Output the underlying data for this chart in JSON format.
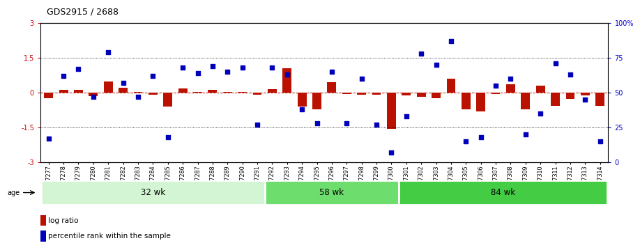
{
  "title": "GDS2915 / 2688",
  "samples": [
    "GSM97277",
    "GSM97278",
    "GSM97279",
    "GSM97280",
    "GSM97281",
    "GSM97282",
    "GSM97283",
    "GSM97284",
    "GSM97285",
    "GSM97286",
    "GSM97287",
    "GSM97288",
    "GSM97289",
    "GSM97290",
    "GSM97291",
    "GSM97292",
    "GSM97293",
    "GSM97294",
    "GSM97295",
    "GSM97296",
    "GSM97297",
    "GSM97298",
    "GSM97299",
    "GSM97300",
    "GSM97301",
    "GSM97302",
    "GSM97303",
    "GSM97304",
    "GSM97305",
    "GSM97306",
    "GSM97307",
    "GSM97308",
    "GSM97309",
    "GSM97310",
    "GSM97311",
    "GSM97312",
    "GSM97313",
    "GSM97314"
  ],
  "log_ratio": [
    -0.22,
    0.12,
    0.14,
    -0.14,
    0.48,
    0.22,
    0.05,
    -0.08,
    -0.58,
    0.18,
    0.04,
    0.12,
    0.05,
    0.04,
    -0.07,
    0.15,
    1.05,
    -0.6,
    -0.72,
    0.45,
    -0.04,
    -0.08,
    -0.08,
    -1.55,
    -0.12,
    -0.18,
    -0.22,
    0.6,
    -0.7,
    -0.8,
    -0.04,
    0.38,
    -0.7,
    0.3,
    -0.55,
    -0.25,
    -0.1,
    -0.55
  ],
  "percentile_rank": [
    17,
    62,
    67,
    47,
    79,
    57,
    47,
    62,
    18,
    68,
    64,
    69,
    65,
    68,
    27,
    68,
    63,
    38,
    28,
    65,
    28,
    60,
    27,
    7,
    33,
    78,
    70,
    87,
    15,
    18,
    55,
    60,
    20,
    35,
    71,
    63,
    45,
    15
  ],
  "groups": [
    {
      "label": "32 wk",
      "start": 0,
      "end": 15,
      "color": "#ccf0cc"
    },
    {
      "label": "58 wk",
      "start": 15,
      "end": 24,
      "color": "#66dd66"
    },
    {
      "label": "84 wk",
      "start": 24,
      "end": 38,
      "color": "#44cc44"
    }
  ],
  "ylim": [
    -3,
    3
  ],
  "right_ylim": [
    0,
    100
  ],
  "hline_dotted": [
    1.5,
    -1.5
  ],
  "bar_color": "#BB1100",
  "dot_color": "#0000BB",
  "bg_color": "#FFFFFF"
}
